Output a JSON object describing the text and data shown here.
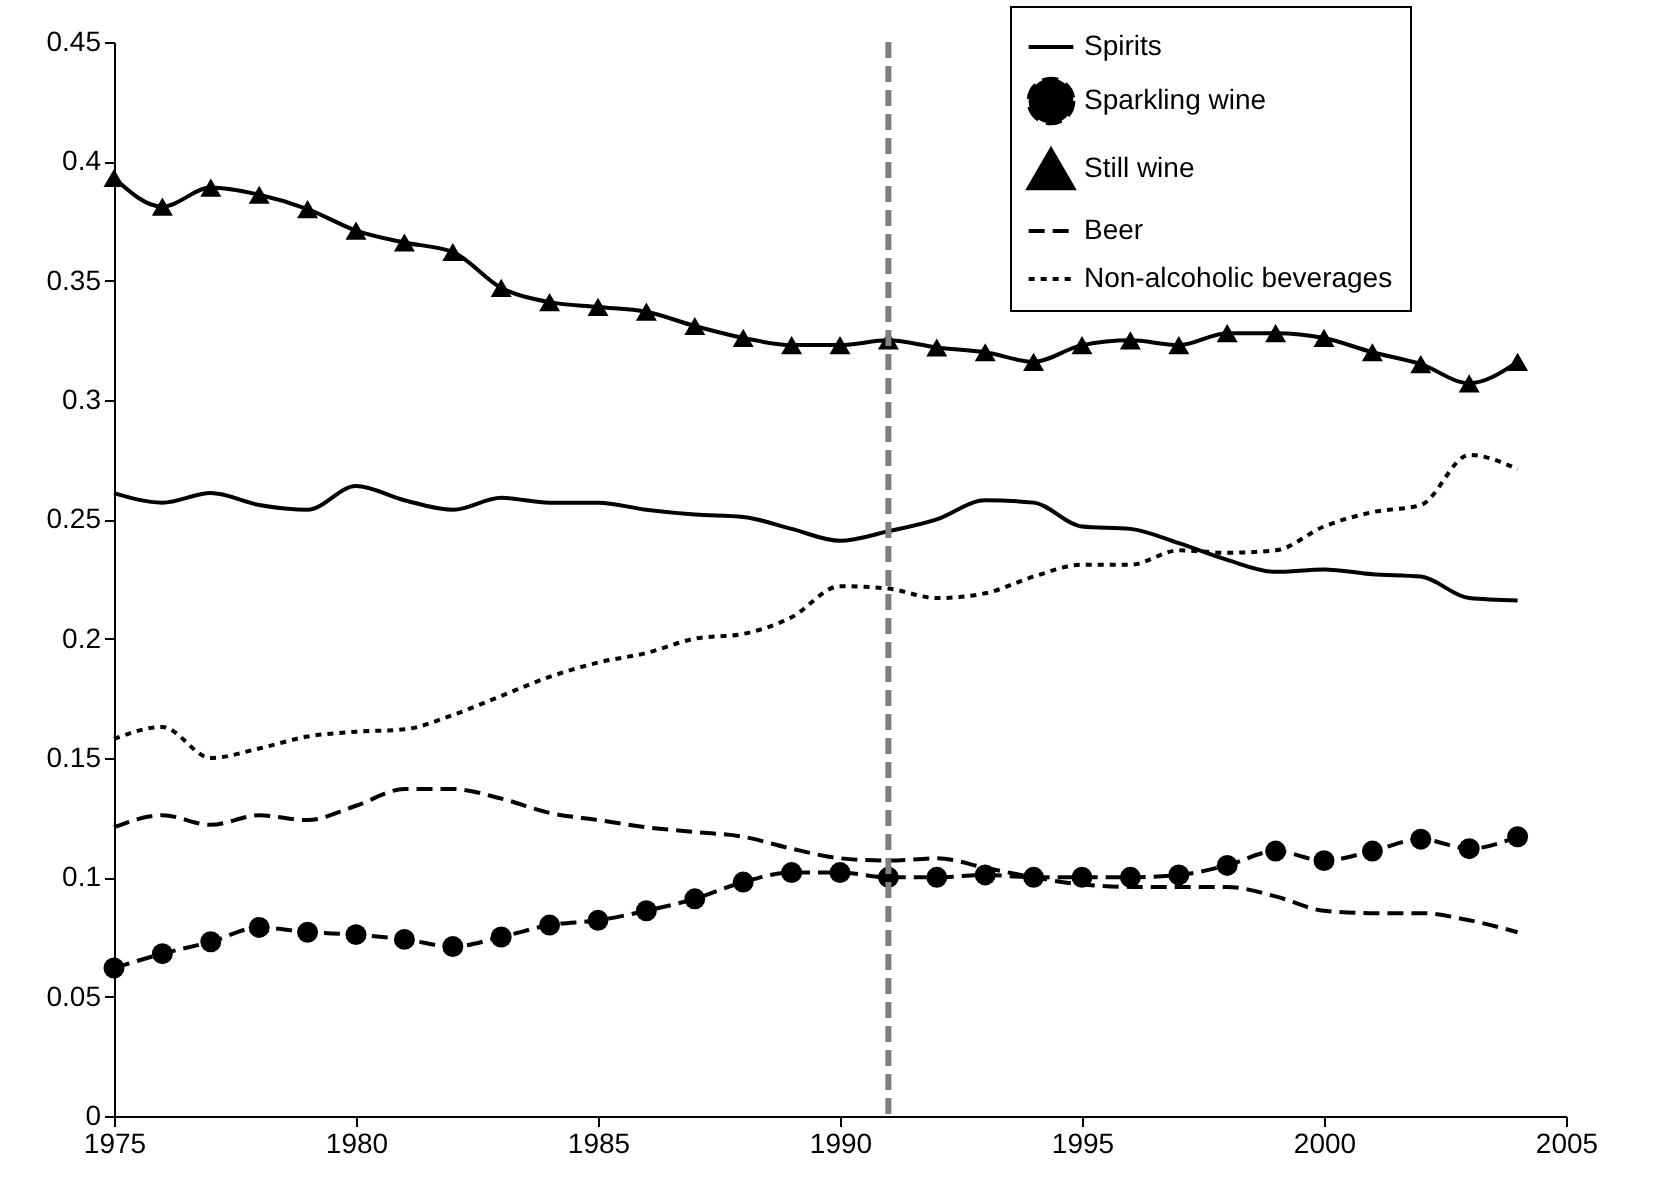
{
  "chart_data": {
    "type": "line",
    "x": [
      1975,
      1976,
      1977,
      1978,
      1979,
      1980,
      1981,
      1982,
      1983,
      1984,
      1985,
      1986,
      1987,
      1988,
      1989,
      1990,
      1991,
      1992,
      1993,
      1994,
      1995,
      1996,
      1997,
      1998,
      1999,
      2000,
      2001,
      2002,
      2003,
      2004
    ],
    "series": [
      {
        "name": "Spirits",
        "color": "#000000",
        "line_style": "solid",
        "marker": "none",
        "values": [
          0.261,
          0.257,
          0.261,
          0.256,
          0.254,
          0.264,
          0.258,
          0.254,
          0.259,
          0.257,
          0.257,
          0.254,
          0.252,
          0.251,
          0.246,
          0.241,
          0.245,
          0.25,
          0.258,
          0.257,
          0.247,
          0.246,
          0.24,
          0.233,
          0.228,
          0.229,
          0.227,
          0.226,
          0.217,
          0.216
        ]
      },
      {
        "name": "Sparkling wine",
        "color": "#000000",
        "line_style": "dashed",
        "marker": "circle",
        "values": [
          0.062,
          0.068,
          0.073,
          0.079,
          0.077,
          0.076,
          0.074,
          0.071,
          0.075,
          0.08,
          0.082,
          0.086,
          0.091,
          0.098,
          0.102,
          0.102,
          0.1,
          0.1,
          0.101,
          0.1,
          0.1,
          0.1,
          0.101,
          0.105,
          0.111,
          0.107,
          0.111,
          0.116,
          0.112,
          0.117
        ]
      },
      {
        "name": "Still wine",
        "color": "#000000",
        "line_style": "solid",
        "marker": "triangle",
        "values": [
          0.393,
          0.381,
          0.389,
          0.386,
          0.38,
          0.371,
          0.366,
          0.362,
          0.347,
          0.341,
          0.339,
          0.337,
          0.331,
          0.326,
          0.323,
          0.323,
          0.325,
          0.322,
          0.32,
          0.316,
          0.323,
          0.325,
          0.323,
          0.328,
          0.328,
          0.326,
          0.32,
          0.315,
          0.307,
          0.316
        ]
      },
      {
        "name": "Beer",
        "color": "#000000",
        "line_style": "dashed",
        "marker": "none",
        "values": [
          0.121,
          0.126,
          0.122,
          0.126,
          0.124,
          0.13,
          0.137,
          0.137,
          0.133,
          0.127,
          0.124,
          0.121,
          0.119,
          0.117,
          0.112,
          0.108,
          0.107,
          0.108,
          0.104,
          0.1,
          0.097,
          0.096,
          0.096,
          0.096,
          0.092,
          0.086,
          0.085,
          0.085,
          0.082,
          0.077
        ]
      },
      {
        "name": "Non-alcoholic beverages",
        "color": "#000000",
        "line_style": "dotted",
        "marker": "none",
        "values": [
          0.158,
          0.163,
          0.15,
          0.154,
          0.159,
          0.161,
          0.162,
          0.168,
          0.176,
          0.184,
          0.19,
          0.194,
          0.2,
          0.202,
          0.209,
          0.222,
          0.221,
          0.217,
          0.219,
          0.226,
          0.231,
          0.231,
          0.237,
          0.236,
          0.237,
          0.247,
          0.253,
          0.256,
          0.277,
          0.271
        ]
      }
    ],
    "xlim": [
      1975,
      2005
    ],
    "xticks": [
      1975,
      1980,
      1985,
      1990,
      1995,
      2000,
      2005
    ],
    "ylim": [
      0,
      0.45
    ],
    "yticks": [
      0,
      0.05,
      0.1,
      0.15,
      0.2,
      0.25,
      0.3,
      0.35,
      0.4,
      0.45
    ],
    "ref_lines": [
      {
        "axis": "x",
        "value": 1991,
        "color": "#808080",
        "line_style": "dashed"
      }
    ],
    "grid": false,
    "legend": "top right"
  }
}
